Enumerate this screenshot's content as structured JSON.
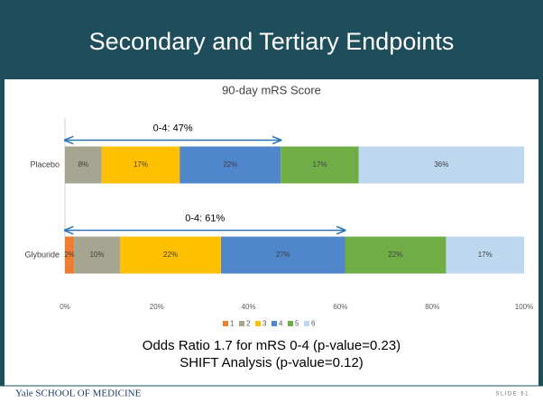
{
  "slide": {
    "title": "Secondary and Tertiary Endpoints",
    "notes": [
      "Odds Ratio 1.7 for mRS 0-4 (p-value=0.23)",
      "SHIFT Analysis (p-value=0.12)"
    ],
    "footer": {
      "school": "Yale SCHOOL OF MEDICINE",
      "slide_number": "SLIDE 61"
    }
  },
  "chart_data": {
    "type": "stacked-barh",
    "title": "90-day mRS Score",
    "categories": [
      "Placebo",
      "Glyburide"
    ],
    "series": [
      {
        "name": "1",
        "color": "#ed7d31",
        "values": [
          0,
          2
        ],
        "value_labels": [
          null,
          "2%"
        ]
      },
      {
        "name": "2",
        "color": "#a5a591",
        "values": [
          8,
          10
        ],
        "value_labels": [
          "8%",
          "10%"
        ]
      },
      {
        "name": "3",
        "color": "#ffc000",
        "values": [
          17,
          22
        ],
        "value_labels": [
          "17%",
          "22%"
        ]
      },
      {
        "name": "4",
        "color": "#4f86cc",
        "values": [
          22,
          27
        ],
        "value_labels": [
          "22%",
          "27%"
        ]
      },
      {
        "name": "5",
        "color": "#70ad47",
        "values": [
          17,
          22
        ],
        "value_labels": [
          "17%",
          "22%"
        ]
      },
      {
        "name": "6",
        "color": "#bdd7ee",
        "values": [
          36,
          17
        ],
        "value_labels": [
          "36%",
          "17%"
        ]
      }
    ],
    "xlim": [
      0,
      100
    ],
    "xticks": [
      {
        "value": 0,
        "label": "0%"
      },
      {
        "value": 20,
        "label": "20%"
      },
      {
        "value": 40,
        "label": "40%"
      },
      {
        "value": 60,
        "label": "60%"
      },
      {
        "value": 80,
        "label": "80%"
      },
      {
        "value": 100,
        "label": "100%"
      }
    ],
    "legend": "bottom",
    "annotations": [
      {
        "text": "0-4: 47%",
        "category": 0,
        "from": 0,
        "to": 47
      },
      {
        "text": "0-4: 61%",
        "category": 1,
        "from": 0,
        "to": 61
      }
    ]
  }
}
